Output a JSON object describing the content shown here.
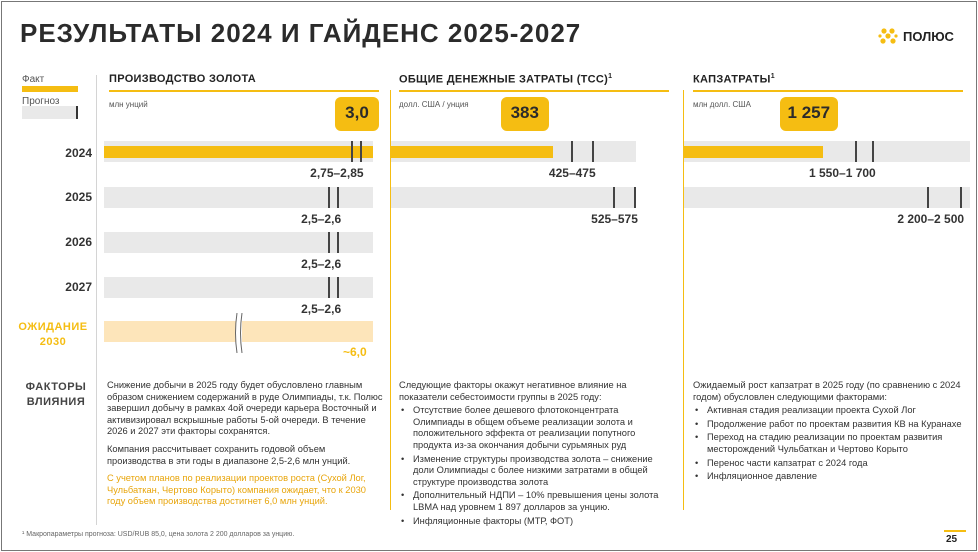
{
  "title": "РЕЗУЛЬТАТЫ 2024 И ГАЙДЕНС 2025-2027",
  "logo": {
    "text": "ПОЛЮС",
    "icon": "polyus-logo-icon",
    "color": "#f5bd12"
  },
  "legend": {
    "fact": "Факт",
    "forecast": "Прогноз"
  },
  "rows": {
    "y2024": "2024",
    "y2025": "2025",
    "y2026": "2026",
    "y2027": "2027",
    "expectation_line1": "ОЖИДАНИЕ",
    "expectation_line2": "2030"
  },
  "factors_line1": "ФАКТОРЫ",
  "factors_line2": "ВЛИЯНИЯ",
  "colors": {
    "accent": "#f5bd12",
    "forecast_bar": "#e9e9e9",
    "expectation_bar": "#fde5ba",
    "highlight_text": "#e8a50b"
  },
  "chart_data": [
    {
      "type": "bar",
      "title": "ПРОИЗВОДСТВО ЗОЛОТА",
      "unit": "млн унций",
      "categories": [
        "2024",
        "2025",
        "2026",
        "2027",
        "ОЖИДАНИЕ 2030"
      ],
      "actual": {
        "category": "2024",
        "value": 3.0,
        "label": "3,0"
      },
      "guidance": [
        {
          "category": "2024",
          "low": 2.75,
          "high": 2.85,
          "label": "2,75–2,85"
        },
        {
          "category": "2025",
          "low": 2.5,
          "high": 2.6,
          "label": "2,5–2,6"
        },
        {
          "category": "2026",
          "low": 2.5,
          "high": 2.6,
          "label": "2,5–2,6"
        },
        {
          "category": "2027",
          "low": 2.5,
          "high": 2.6,
          "label": "2,5–2,6"
        }
      ],
      "expectation": {
        "category": "ОЖИДАНИЕ 2030",
        "value": 6.0,
        "label": "~6,0"
      }
    },
    {
      "type": "bar",
      "title": "ОБЩИЕ ДЕНЕЖНЫЕ ЗАТРАТЫ (TCC)",
      "title_sup": "1",
      "unit": "долл. США / унция",
      "categories": [
        "2024",
        "2025"
      ],
      "actual": {
        "category": "2024",
        "value": 383,
        "label": "383"
      },
      "guidance": [
        {
          "category": "2024",
          "low": 425,
          "high": 475,
          "label": "425–475"
        },
        {
          "category": "2025",
          "low": 525,
          "high": 575,
          "label": "525–575"
        }
      ]
    },
    {
      "type": "bar",
      "title": "КАПЗАТРАТЫ",
      "title_sup": "1",
      "unit": "млн долл. США",
      "categories": [
        "2024",
        "2025"
      ],
      "actual": {
        "category": "2024",
        "value": 1257,
        "label": "1 257"
      },
      "guidance": [
        {
          "category": "2024",
          "low": 1550,
          "high": 1700,
          "label": "1 550–1 700"
        },
        {
          "category": "2025",
          "low": 2200,
          "high": 2500,
          "label": "2 200–2 500"
        }
      ]
    }
  ],
  "factors": {
    "gold": {
      "p1": "Снижение добычи в 2025 году будет обусловлено главным образом снижением содержаний в руде Олимпиады, т.к. Полюс завершил добычу в рамках 4ой очереди карьера Восточный и активизировал вскрышные работы 5-ой очереди. В течение 2026 и 2027 эти факторы сохранятся.",
      "p2": "Компания рассчитывает сохранить годовой объем производства в эти годы в диапазоне 2,5-2,6 млн унций.",
      "p3": "С учетом планов по реализации проектов роста (Сухой Лог, Чульбаткан, Чертово Корыто) компания ожидает, что к 2030 году объем производства достигнет 6,0 млн унций."
    },
    "tcc": {
      "intro": "Следующие факторы окажут негативное влияние на показатели себестоимости группы в 2025 году:",
      "bullets": [
        "Отсутствие более дешевого флотоконцентрата Олимпиады в общем объеме реализации золота и положительного эффекта от реализации попутного продукта из-за окончания добычи сурьмяных руд",
        "Изменение структуры производства золота – снижение доли Олимпиады с более низкими затратами в общей структуре производства золота",
        "Дополнительный НДПИ – 10% превышения цены золота LBMA над уровнем 1 897 долларов за унцию.",
        "Инфляционные факторы (МТР, ФОТ)"
      ]
    },
    "capex": {
      "intro": "Ожидаемый рост капзатрат в 2025 году (по сравнению с 2024 годом) обусловлен следующими факторами:",
      "bullets": [
        "Активная стадия реализации проекта Сухой Лог",
        "Продолжение работ по проектам развития КВ на Куранахе",
        "Переход на стадию реализации по проектам развития месторождений Чульбаткан и Чертово Корыто",
        "Перенос части капзатрат с 2024 года",
        "Инфляционное давление"
      ]
    }
  },
  "footnote": "¹ Макропараметры прогноза: USD/RUB 85,0, цена золота 2 200 долларов за унцию.",
  "page_number": "25"
}
